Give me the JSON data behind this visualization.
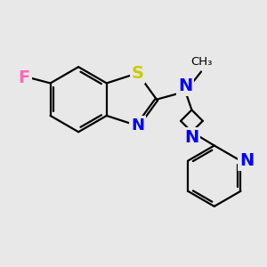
{
  "bg_color": "#e8e8e8",
  "bond_color": "#000000",
  "N_color": "#0000ff",
  "S_color": "#cccc00",
  "F_color": "#ff69b4",
  "line_width": 1.6,
  "font_size": 14,
  "figsize": [
    3.0,
    3.0
  ],
  "dpi": 100,
  "xlim": [
    -2.5,
    2.5
  ],
  "ylim": [
    -2.8,
    2.2
  ]
}
